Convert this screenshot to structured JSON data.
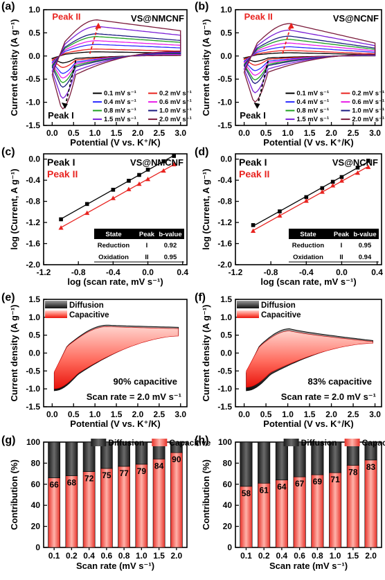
{
  "chart_data": [
    {
      "panel": "(a)",
      "type": "line",
      "title": "VS@NMCNF",
      "xlabel": "Potential (V vs. K⁺/K)",
      "ylabel": "Current density (A g⁻¹)",
      "xlim": [
        -0.2,
        3.15
      ],
      "ylim": [
        -1.5,
        1.0
      ],
      "xticks": [
        "0.0",
        "0.5",
        "1.0",
        "1.5",
        "2.0",
        "2.5",
        "3.0"
      ],
      "yticks": [
        "-1.5",
        "-1.0",
        "-0.5",
        "0.0",
        "0.5",
        "1.0"
      ],
      "peak_labels": [
        "Peak II",
        "Peak I"
      ],
      "legend": [
        "0.1 mV s⁻¹",
        "0.2 mV s⁻¹",
        "0.4 mV s⁻¹",
        "0.6 mV s⁻¹",
        "0.8 mV s⁻¹",
        "1.0 mV s⁻¹",
        "1.5 mV s⁻¹",
        "2.0 mV s⁻¹"
      ],
      "series_colors": [
        "#000000",
        "#e8231f",
        "#2b2bff",
        "#e81ee8",
        "#1fa01f",
        "#1a1a80",
        "#7a1fd6",
        "#7a1a3a"
      ],
      "peak_anodic": [
        0.09,
        0.15,
        0.25,
        0.33,
        0.42,
        0.48,
        0.64,
        0.78
      ],
      "peak_cathodic": [
        -0.15,
        -0.25,
        -0.38,
        -0.48,
        -0.58,
        -0.68,
        -0.92,
        -1.15
      ]
    },
    {
      "panel": "(b)",
      "type": "line",
      "title": "VS@NCNF",
      "xlabel": "Potential (V vs. K⁺/K)",
      "ylabel": "Current density (A g⁻¹)",
      "xlim": [
        -0.2,
        3.15
      ],
      "ylim": [
        -1.5,
        1.0
      ],
      "xticks": [
        "0.0",
        "0.5",
        "1.0",
        "1.5",
        "2.0",
        "2.5",
        "3.0"
      ],
      "yticks": [
        "-1.5",
        "-1.0",
        "-0.5",
        "0.0",
        "0.5",
        "1.0"
      ],
      "peak_labels": [
        "Peak II",
        "Peak I"
      ],
      "legend": [
        "0.1 mV s⁻¹",
        "0.2 mV s⁻¹",
        "0.4 mV s⁻¹",
        "0.6 mV s⁻¹",
        "0.8 mV s⁻¹",
        "1.0 mV s⁻¹",
        "1.5 mV s⁻¹",
        "2.0 mV s⁻¹"
      ],
      "series_colors": [
        "#000000",
        "#e8231f",
        "#2b2bff",
        "#e81ee8",
        "#1fa01f",
        "#1a1a80",
        "#7a1fd6",
        "#7a1a3a"
      ],
      "peak_anodic": [
        0.07,
        0.12,
        0.2,
        0.28,
        0.36,
        0.43,
        0.56,
        0.7
      ],
      "peak_cathodic": [
        -0.12,
        -0.2,
        -0.32,
        -0.42,
        -0.52,
        -0.6,
        -0.8,
        -1.0
      ]
    },
    {
      "panel": "(c)",
      "type": "scatter",
      "title": "VS@NMCNF",
      "xlabel": "log (scan rate, mV s⁻¹)",
      "ylabel": "log (Current, A g⁻¹)",
      "xlim": [
        -1.2,
        0.45
      ],
      "ylim": [
        -2.0,
        0.1
      ],
      "xticks": [
        "-1.2",
        "-0.8",
        "-0.4",
        "0.0",
        "0.4"
      ],
      "yticks": [
        "-2.0",
        "-1.6",
        "-1.2",
        "-0.8",
        "-0.4",
        "0.0"
      ],
      "series": [
        {
          "name": "Peak I",
          "color": "#000000",
          "x": [
            -1.0,
            -0.7,
            -0.4,
            -0.22,
            -0.1,
            0.0,
            0.18,
            0.3
          ],
          "y": [
            -1.14,
            -0.85,
            -0.58,
            -0.41,
            -0.3,
            -0.2,
            -0.04,
            0.06
          ]
        },
        {
          "name": "Peak II",
          "color": "#e8231f",
          "x": [
            -1.0,
            -0.7,
            -0.4,
            -0.22,
            -0.1,
            0.0,
            0.18,
            0.3
          ],
          "y": [
            -1.3,
            -1.02,
            -0.74,
            -0.57,
            -0.47,
            -0.38,
            -0.22,
            -0.1
          ]
        }
      ],
      "table": {
        "headers": [
          "State",
          "Peak",
          "b-value"
        ],
        "rows": [
          [
            "Reduction",
            "I",
            "0.92"
          ],
          [
            "Oxidation",
            "II",
            "0.95"
          ]
        ]
      }
    },
    {
      "panel": "(d)",
      "type": "scatter",
      "title": "VS@NCNF",
      "xlabel": "log (scan rate, mV s⁻¹)",
      "ylabel": "log (Current, A g⁻¹)",
      "xlim": [
        -1.2,
        0.45
      ],
      "ylim": [
        -2.0,
        0.1
      ],
      "xticks": [
        "-1.2",
        "-0.8",
        "-0.4",
        "0.0",
        "0.4"
      ],
      "yticks": [
        "-2.0",
        "-1.6",
        "-1.2",
        "-0.8",
        "-0.4",
        "0.0"
      ],
      "series": [
        {
          "name": "Peak I",
          "color": "#000000",
          "x": [
            -1.0,
            -0.7,
            -0.4,
            -0.22,
            -0.1,
            0.0,
            0.18,
            0.3
          ],
          "y": [
            -1.25,
            -0.99,
            -0.72,
            -0.55,
            -0.43,
            -0.34,
            -0.16,
            -0.03
          ]
        },
        {
          "name": "Peak II",
          "color": "#e8231f",
          "x": [
            -1.0,
            -0.7,
            -0.4,
            -0.22,
            -0.1,
            0.0,
            0.18,
            0.3
          ],
          "y": [
            -1.36,
            -1.07,
            -0.79,
            -0.62,
            -0.5,
            -0.41,
            -0.26,
            -0.15
          ]
        }
      ],
      "table": {
        "headers": [
          "State",
          "Peak",
          "b-value"
        ],
        "rows": [
          [
            "Reduction",
            "I",
            "0.95"
          ],
          [
            "Oxidation",
            "II",
            "0.94"
          ]
        ]
      }
    },
    {
      "panel": "(e)",
      "type": "area",
      "xlabel": "Potential (V vs. K⁺/K)",
      "ylabel": "Current density (A g⁻¹)",
      "xlim": [
        -0.2,
        3.15
      ],
      "ylim": [
        -1.5,
        1.5
      ],
      "xticks": [
        "0.0",
        "0.5",
        "1.0",
        "1.5",
        "2.0",
        "2.5",
        "3.0"
      ],
      "yticks": [
        "-1.5",
        "-1.0",
        "-0.5",
        "0.0",
        "0.5",
        "1.0",
        "1.5"
      ],
      "legend": [
        "Diffusion",
        "Capacitive"
      ],
      "annotation": "90% capacitive",
      "scan_rate_label": "Scan rate = 2.0 mV s⁻¹",
      "capacitive_percent": 90
    },
    {
      "panel": "(f)",
      "type": "area",
      "xlabel": "Potential (V vs. K⁺/K)",
      "ylabel": "Current density (A g⁻¹)",
      "xlim": [
        -0.2,
        3.15
      ],
      "ylim": [
        -1.5,
        1.5
      ],
      "xticks": [
        "0.0",
        "0.5",
        "1.0",
        "1.5",
        "2.0",
        "2.5",
        "3.0"
      ],
      "yticks": [
        "-1.5",
        "-1.0",
        "-0.5",
        "0.0",
        "0.5",
        "1.0",
        "1.5"
      ],
      "legend": [
        "Diffusion",
        "Capacitive"
      ],
      "annotation": "83% capacitive",
      "scan_rate_label": "Scan rate = 2.0 mV s⁻¹",
      "capacitive_percent": 83
    },
    {
      "panel": "(g)",
      "type": "bar",
      "xlabel": "Scan rate (mV s⁻¹)",
      "ylabel": "Contribution (%)",
      "ylim": [
        0,
        100
      ],
      "yticks": [
        "0",
        "20",
        "40",
        "60",
        "80",
        "100"
      ],
      "categories": [
        "0.1",
        "0.2",
        "0.4",
        "0.6",
        "0.8",
        "1.0",
        "1.5",
        "2.0"
      ],
      "series": [
        {
          "name": "Capacitive",
          "values": [
            66,
            68,
            72,
            75,
            77,
            79,
            84,
            90
          ]
        },
        {
          "name": "Diffusion",
          "values": [
            34,
            32,
            28,
            25,
            23,
            21,
            16,
            10
          ]
        }
      ]
    },
    {
      "panel": "(h)",
      "type": "bar",
      "xlabel": "Scan rate (mV s⁻¹)",
      "ylabel": "Contribution (%)",
      "ylim": [
        0,
        100
      ],
      "yticks": [
        "0",
        "20",
        "40",
        "60",
        "80",
        "100"
      ],
      "categories": [
        "0.1",
        "0.2",
        "0.4",
        "0.6",
        "0.8",
        "1.0",
        "1.5",
        "2.0"
      ],
      "series": [
        {
          "name": "Capacitive",
          "values": [
            58,
            61,
            64,
            67,
            69,
            71,
            78,
            83
          ]
        },
        {
          "name": "Diffusion",
          "values": [
            42,
            39,
            36,
            33,
            31,
            29,
            22,
            17
          ]
        }
      ]
    }
  ]
}
